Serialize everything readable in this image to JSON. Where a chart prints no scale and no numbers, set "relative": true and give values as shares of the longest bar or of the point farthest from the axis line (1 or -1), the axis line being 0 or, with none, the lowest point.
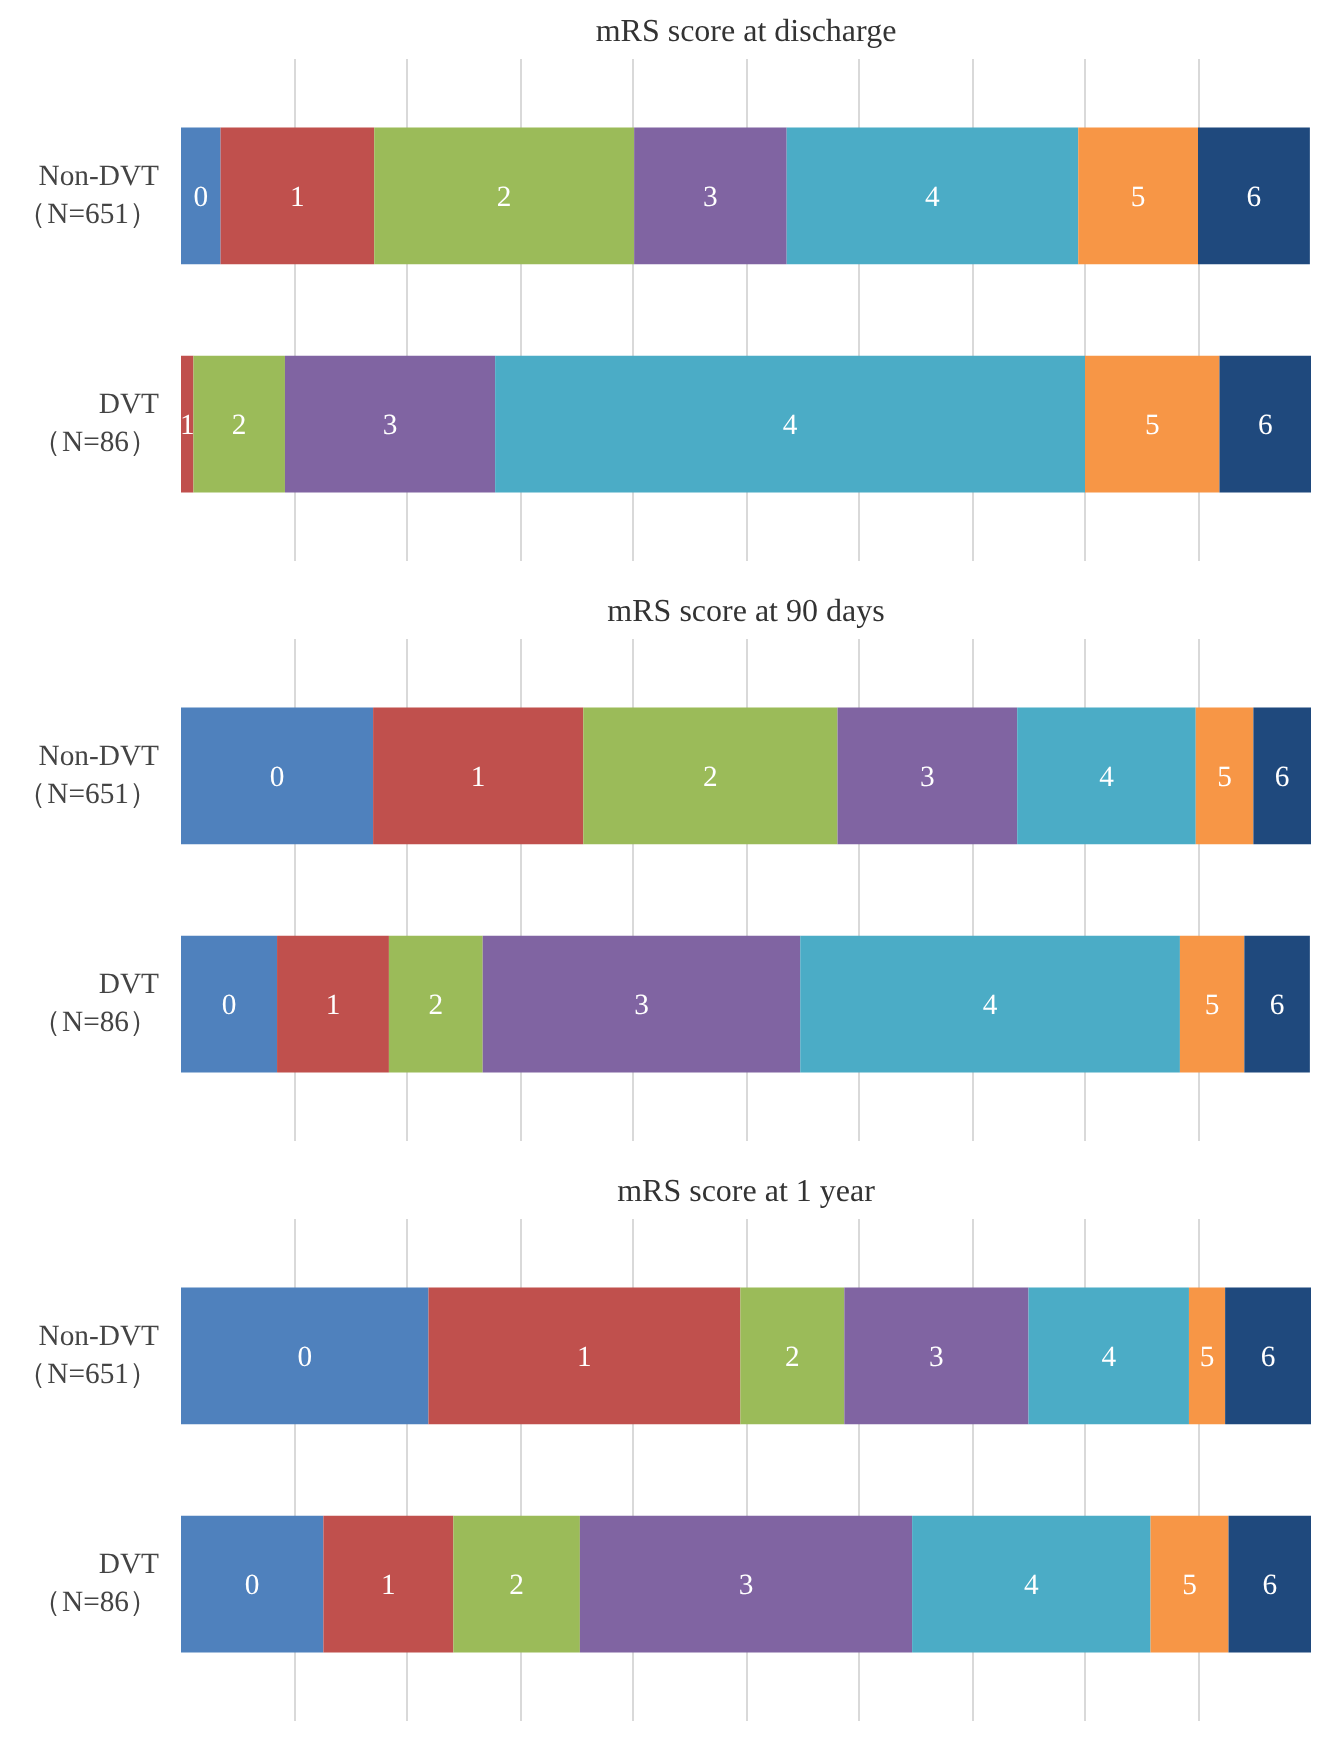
{
  "chart_data": [
    {
      "type": "bar",
      "orientation": "horizontal",
      "stacked": true,
      "relative": true,
      "grid": "x",
      "legend": false,
      "title": "mRS score at discharge",
      "categories": [
        "Non-DVT\n（N=651）",
        "DVT\n（N=86）"
      ],
      "series": [
        {
          "name": "0",
          "color": "#4f81bd",
          "values": [
            0.035,
            0
          ]
        },
        {
          "name": "1",
          "color": "#c0504d",
          "values": [
            0.136,
            0.011
          ]
        },
        {
          "name": "2",
          "color": "#9bbb59",
          "values": [
            0.23,
            0.081
          ]
        },
        {
          "name": "3",
          "color": "#8064a2",
          "values": [
            0.135,
            0.186
          ]
        },
        {
          "name": "4",
          "color": "#4bacc6",
          "values": [
            0.258,
            0.522
          ]
        },
        {
          "name": "5",
          "color": "#f79646",
          "values": [
            0.106,
            0.119
          ]
        },
        {
          "name": "6",
          "color": "#1f497d",
          "values": [
            0.099,
            0.081
          ]
        }
      ]
    },
    {
      "type": "bar",
      "orientation": "horizontal",
      "stacked": true,
      "relative": true,
      "grid": "x",
      "legend": false,
      "title": "mRS score at 90 days",
      "categories": [
        "Non-DVT\n（N=651）",
        "DVT\n（N=86）"
      ],
      "series": [
        {
          "name": "0",
          "color": "#4f81bd",
          "values": [
            0.17,
            0.085
          ]
        },
        {
          "name": "1",
          "color": "#c0504d",
          "values": [
            0.186,
            0.099
          ]
        },
        {
          "name": "2",
          "color": "#9bbb59",
          "values": [
            0.225,
            0.083
          ]
        },
        {
          "name": "3",
          "color": "#8064a2",
          "values": [
            0.159,
            0.281
          ]
        },
        {
          "name": "4",
          "color": "#4bacc6",
          "values": [
            0.158,
            0.336
          ]
        },
        {
          "name": "5",
          "color": "#f79646",
          "values": [
            0.051,
            0.057
          ]
        },
        {
          "name": "6",
          "color": "#1f497d",
          "values": [
            0.051,
            0.058
          ]
        }
      ]
    },
    {
      "type": "bar",
      "orientation": "horizontal",
      "stacked": true,
      "relative": true,
      "grid": "x",
      "legend": false,
      "title": "mRS score at 1 year",
      "categories": [
        "Non-DVT\n（N=651）",
        "DVT\n（N=86）"
      ],
      "series": [
        {
          "name": "0",
          "color": "#4f81bd",
          "values": [
            0.219,
            0.126
          ]
        },
        {
          "name": "1",
          "color": "#c0504d",
          "values": [
            0.276,
            0.115
          ]
        },
        {
          "name": "2",
          "color": "#9bbb59",
          "values": [
            0.092,
            0.112
          ]
        },
        {
          "name": "3",
          "color": "#8064a2",
          "values": [
            0.163,
            0.294
          ]
        },
        {
          "name": "4",
          "color": "#4bacc6",
          "values": [
            0.142,
            0.211
          ]
        },
        {
          "name": "5",
          "color": "#f79646",
          "values": [
            0.032,
            0.069
          ]
        },
        {
          "name": "6",
          "color": "#1f497d",
          "values": [
            0.076,
            0.073
          ]
        }
      ]
    }
  ]
}
